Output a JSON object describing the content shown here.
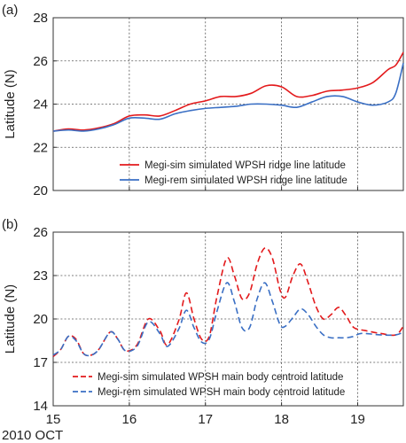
{
  "xaxis": {
    "ticks": [
      15,
      16,
      17,
      18,
      19
    ],
    "tick_labels": [
      "15",
      "16",
      "17",
      "18",
      "19"
    ],
    "sublabel": "2010 OCT",
    "xlim": [
      15,
      19.6
    ]
  },
  "chart_data": [
    {
      "type": "line",
      "panel_label": "(a)",
      "ylabel": "Latitude (N)",
      "ylim": [
        20,
        28
      ],
      "yticks": [
        20,
        22,
        24,
        26,
        28
      ],
      "ytick_labels": [
        "20",
        "22",
        "24",
        "26",
        "28"
      ],
      "grid": true,
      "legend_placement": "bottom-right",
      "series": [
        {
          "name": "Megi-sim simulated  WPSH ridge line latitude",
          "color": "#e31a1c",
          "dash": "solid",
          "points": [
            [
              15.0,
              22.75
            ],
            [
              15.2,
              22.85
            ],
            [
              15.4,
              22.8
            ],
            [
              15.6,
              22.9
            ],
            [
              15.8,
              23.1
            ],
            [
              16.0,
              23.45
            ],
            [
              16.2,
              23.5
            ],
            [
              16.4,
              23.45
            ],
            [
              16.6,
              23.7
            ],
            [
              16.8,
              24.0
            ],
            [
              17.0,
              24.15
            ],
            [
              17.2,
              24.35
            ],
            [
              17.4,
              24.35
            ],
            [
              17.6,
              24.5
            ],
            [
              17.8,
              24.85
            ],
            [
              18.0,
              24.8
            ],
            [
              18.2,
              24.35
            ],
            [
              18.4,
              24.4
            ],
            [
              18.6,
              24.6
            ],
            [
              18.8,
              24.65
            ],
            [
              19.0,
              24.75
            ],
            [
              19.2,
              25.0
            ],
            [
              19.4,
              25.6
            ],
            [
              19.5,
              25.8
            ],
            [
              19.6,
              26.4
            ]
          ]
        },
        {
          "name": "Megi-rem simulated  WPSH ridge line latitude",
          "color": "#3a6fc4",
          "dash": "solid",
          "points": [
            [
              15.0,
              22.75
            ],
            [
              15.2,
              22.8
            ],
            [
              15.4,
              22.75
            ],
            [
              15.6,
              22.85
            ],
            [
              15.8,
              23.05
            ],
            [
              16.0,
              23.35
            ],
            [
              16.2,
              23.35
            ],
            [
              16.4,
              23.3
            ],
            [
              16.6,
              23.55
            ],
            [
              16.8,
              23.7
            ],
            [
              17.0,
              23.8
            ],
            [
              17.2,
              23.85
            ],
            [
              17.4,
              23.9
            ],
            [
              17.6,
              24.0
            ],
            [
              17.8,
              24.0
            ],
            [
              18.0,
              23.95
            ],
            [
              18.2,
              23.85
            ],
            [
              18.4,
              24.1
            ],
            [
              18.6,
              24.35
            ],
            [
              18.8,
              24.35
            ],
            [
              19.0,
              24.1
            ],
            [
              19.2,
              23.95
            ],
            [
              19.4,
              24.1
            ],
            [
              19.5,
              24.5
            ],
            [
              19.6,
              25.9
            ]
          ]
        }
      ]
    },
    {
      "type": "line",
      "panel_label": "(b)",
      "ylabel": "Latitude (N)",
      "ylim": [
        14,
        26
      ],
      "yticks": [
        14,
        17,
        20,
        23,
        26
      ],
      "ytick_labels": [
        "14",
        "17",
        "20",
        "23",
        "26"
      ],
      "grid": true,
      "legend_placement": "bottom-right",
      "series": [
        {
          "name": "Megi-sim simulated  WPSH main body centroid latitude",
          "color": "#e31a1c",
          "dash": "dashed",
          "points": [
            [
              15.0,
              17.4
            ],
            [
              15.1,
              17.9
            ],
            [
              15.2,
              18.8
            ],
            [
              15.3,
              18.6
            ],
            [
              15.4,
              17.6
            ],
            [
              15.5,
              17.5
            ],
            [
              15.6,
              17.9
            ],
            [
              15.75,
              19.1
            ],
            [
              15.85,
              18.6
            ],
            [
              15.95,
              17.8
            ],
            [
              16.1,
              18.2
            ],
            [
              16.25,
              20.0
            ],
            [
              16.4,
              19.2
            ],
            [
              16.5,
              18.2
            ],
            [
              16.65,
              19.9
            ],
            [
              16.75,
              21.8
            ],
            [
              16.85,
              20.0
            ],
            [
              16.95,
              18.6
            ],
            [
              17.05,
              18.8
            ],
            [
              17.15,
              21.5
            ],
            [
              17.28,
              24.2
            ],
            [
              17.38,
              23.0
            ],
            [
              17.48,
              21.4
            ],
            [
              17.58,
              21.8
            ],
            [
              17.68,
              23.8
            ],
            [
              17.78,
              24.9
            ],
            [
              17.88,
              24.2
            ],
            [
              17.98,
              22.0
            ],
            [
              18.05,
              21.5
            ],
            [
              18.15,
              23.0
            ],
            [
              18.25,
              23.8
            ],
            [
              18.35,
              22.5
            ],
            [
              18.45,
              20.9
            ],
            [
              18.55,
              20.0
            ],
            [
              18.65,
              20.3
            ],
            [
              18.75,
              20.8
            ],
            [
              18.85,
              20.2
            ],
            [
              18.95,
              19.4
            ],
            [
              19.1,
              19.2
            ],
            [
              19.3,
              19.0
            ],
            [
              19.5,
              18.9
            ],
            [
              19.6,
              19.5
            ]
          ]
        },
        {
          "name": "Megi-rem simulated  WPSH main body centroid latitude",
          "color": "#3a6fc4",
          "dash": "dashed",
          "points": [
            [
              15.0,
              17.5
            ],
            [
              15.1,
              17.9
            ],
            [
              15.2,
              18.8
            ],
            [
              15.3,
              18.5
            ],
            [
              15.4,
              17.6
            ],
            [
              15.5,
              17.5
            ],
            [
              15.6,
              17.9
            ],
            [
              15.75,
              19.1
            ],
            [
              15.85,
              18.6
            ],
            [
              15.95,
              17.8
            ],
            [
              16.1,
              18.1
            ],
            [
              16.25,
              19.8
            ],
            [
              16.4,
              19.0
            ],
            [
              16.5,
              18.1
            ],
            [
              16.65,
              19.3
            ],
            [
              16.75,
              20.6
            ],
            [
              16.85,
              19.4
            ],
            [
              16.95,
              18.4
            ],
            [
              17.05,
              18.6
            ],
            [
              17.15,
              20.5
            ],
            [
              17.28,
              22.5
            ],
            [
              17.38,
              21.2
            ],
            [
              17.48,
              19.4
            ],
            [
              17.58,
              19.4
            ],
            [
              17.68,
              21.4
            ],
            [
              17.78,
              22.5
            ],
            [
              17.88,
              21.2
            ],
            [
              17.98,
              19.6
            ],
            [
              18.05,
              19.5
            ],
            [
              18.15,
              20.1
            ],
            [
              18.25,
              20.7
            ],
            [
              18.35,
              20.3
            ],
            [
              18.45,
              19.5
            ],
            [
              18.55,
              18.9
            ],
            [
              18.65,
              18.7
            ],
            [
              18.75,
              18.7
            ],
            [
              18.85,
              18.7
            ],
            [
              18.95,
              18.8
            ],
            [
              19.05,
              19.0
            ],
            [
              19.3,
              18.9
            ],
            [
              19.5,
              18.9
            ],
            [
              19.6,
              19.1
            ]
          ]
        }
      ]
    }
  ]
}
